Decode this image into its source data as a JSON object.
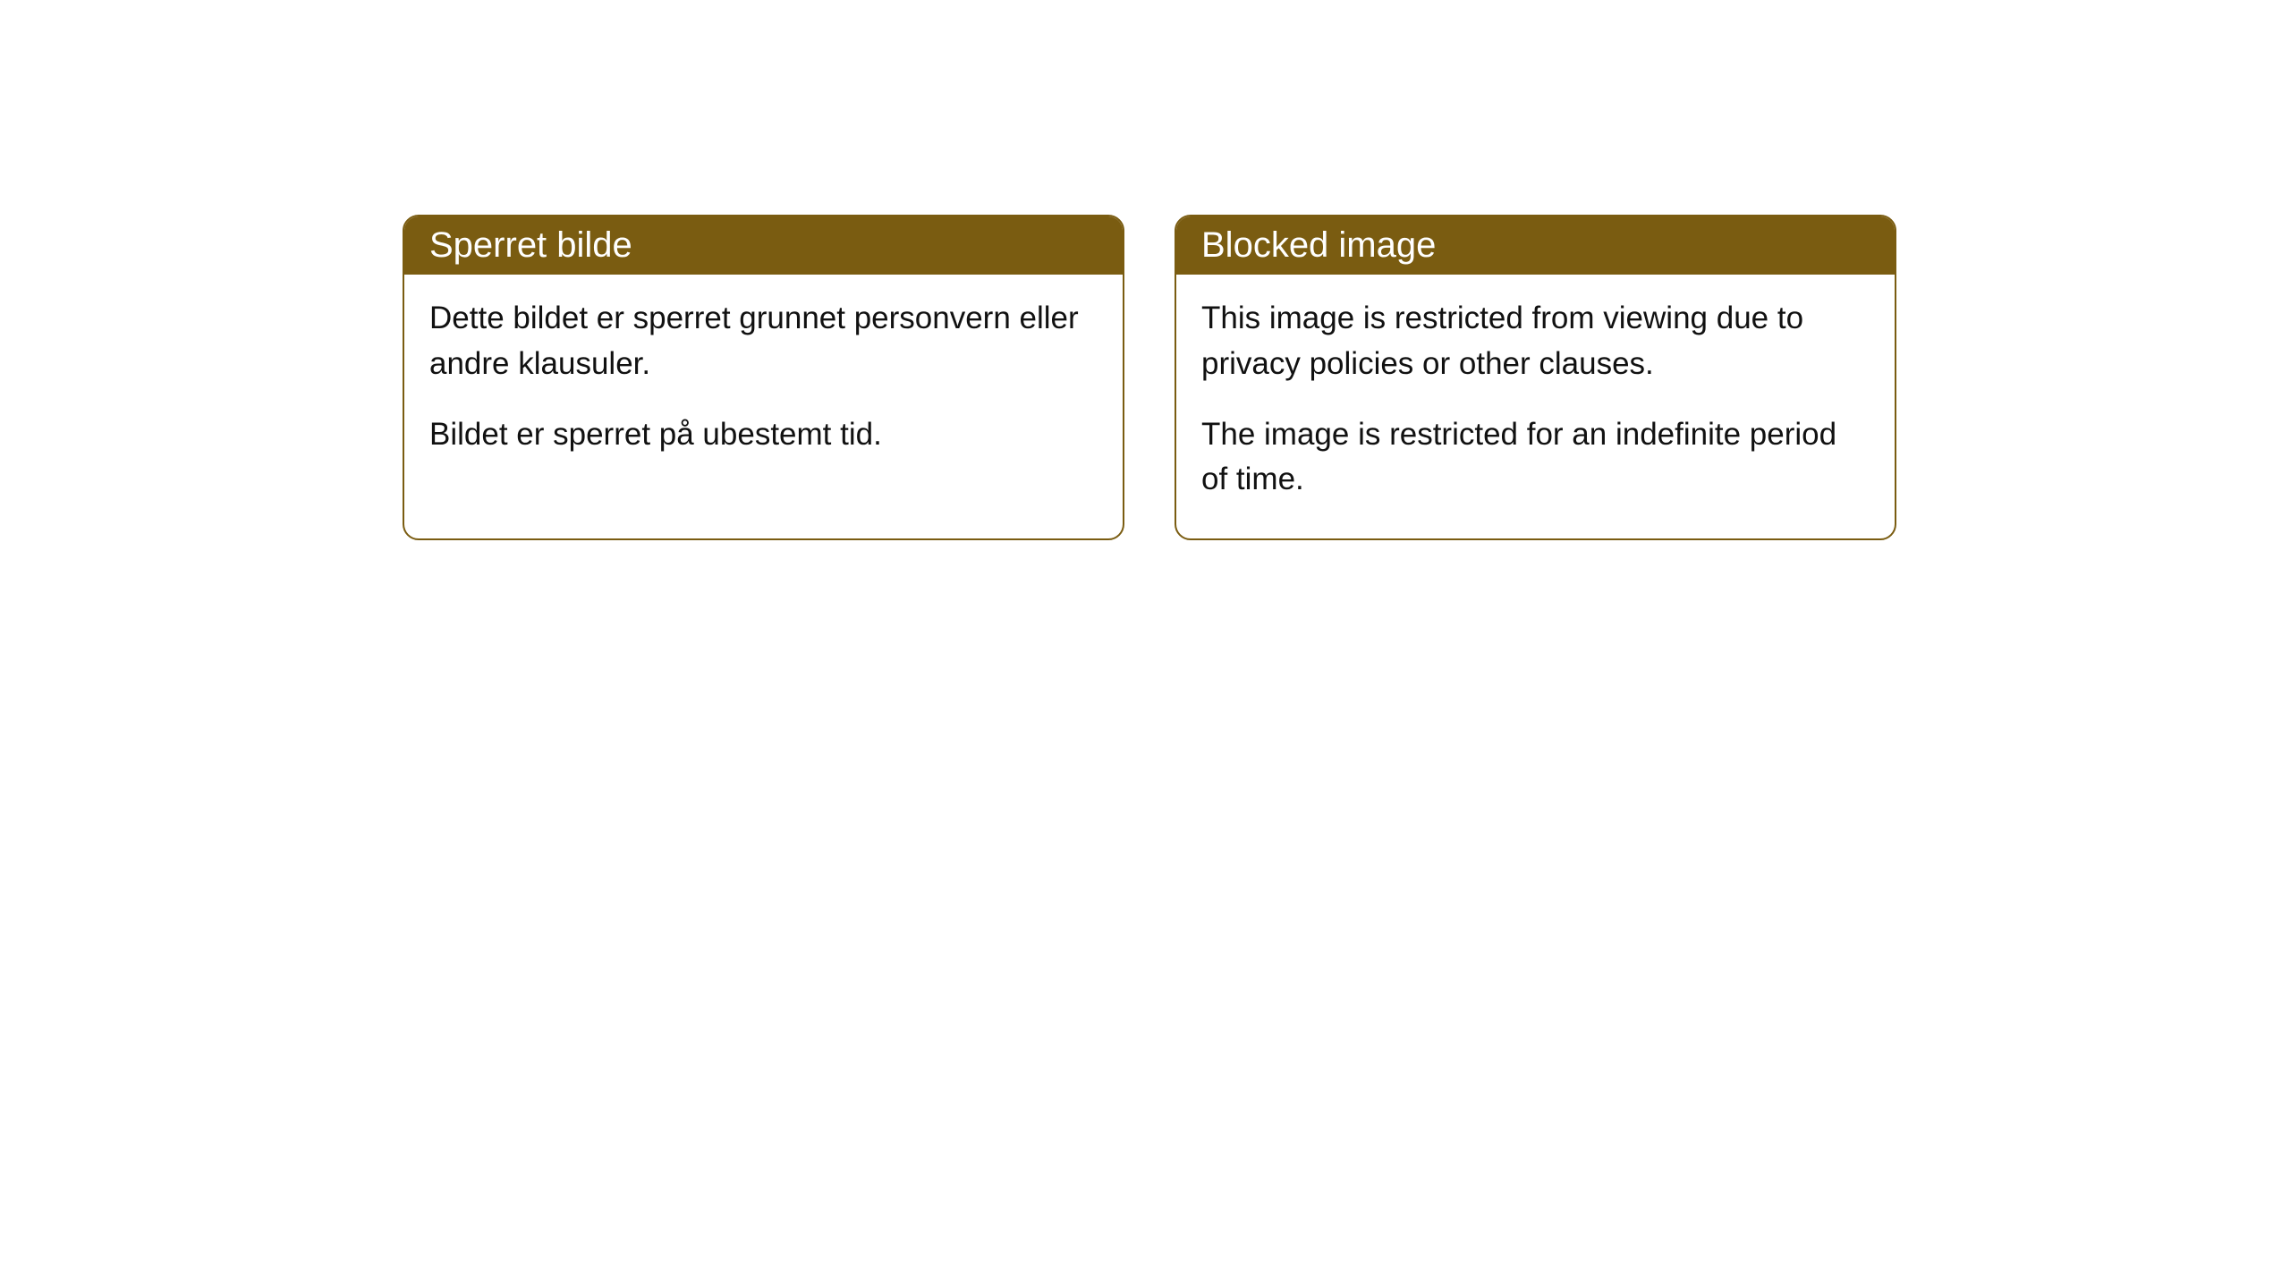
{
  "cards": [
    {
      "title": "Sperret bilde",
      "para1": "Dette bildet er sperret grunnet personvern eller andre klausuler.",
      "para2": "Bildet er sperret på ubestemt tid."
    },
    {
      "title": "Blocked image",
      "para1": "This image is restricted from viewing due to privacy policies or other clauses.",
      "para2": "The image is restricted for an indefinite period of time."
    }
  ],
  "style": {
    "header_bg": "#7a5c11",
    "header_color": "#ffffff",
    "border_color": "#7a5c11",
    "body_bg": "#ffffff",
    "body_color": "#111111",
    "border_radius": 18,
    "title_fontsize": 40,
    "body_fontsize": 35
  }
}
